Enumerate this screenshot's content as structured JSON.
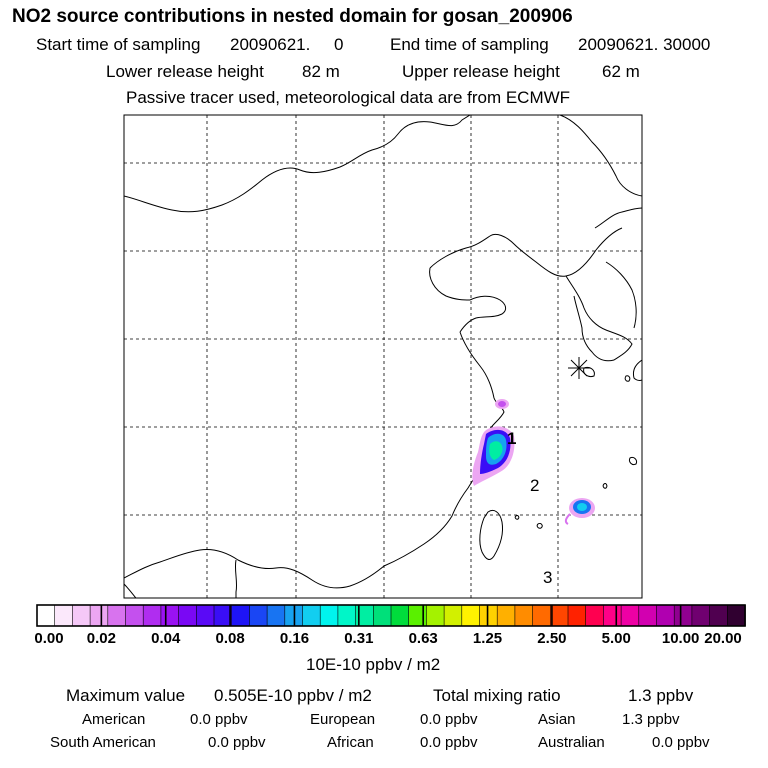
{
  "header": {
    "title": "NO2 source contributions in nested domain for gosan_200906",
    "start_label": "Start time of sampling",
    "start_value": "20090621.     0",
    "end_label": "End time of sampling",
    "end_value": "20090621. 30000",
    "lower_label": "Lower release height",
    "lower_value": "82 m",
    "upper_label": "Upper release height",
    "upper_value": "62 m",
    "note": "Passive tracer used, meteorological data are from ECMWF"
  },
  "map": {
    "receptor_marker": "asterisk-icon",
    "labels": [
      "1",
      "2",
      "3"
    ]
  },
  "colorbar": {
    "ticks": [
      "0.00",
      "0.02",
      "0.04",
      "0.08",
      "0.16",
      "0.31",
      "0.63",
      "1.25",
      "2.50",
      "5.00",
      "10.00",
      "20.00"
    ],
    "colors": [
      "#ffffff",
      "#fbe8fb",
      "#f5c8f7",
      "#eca6f2",
      "#d873ee",
      "#c450ee",
      "#b02df0",
      "#9a12f2",
      "#7a08f4",
      "#5a0af6",
      "#3a0ef6",
      "#1e14f6",
      "#1a46f4",
      "#1874f2",
      "#17a2f0",
      "#12cef0",
      "#00f4ee",
      "#00f6c8",
      "#00eea2",
      "#00e07a",
      "#00dc3c",
      "#5af000",
      "#a4f200",
      "#d2f000",
      "#fff200",
      "#ffd200",
      "#ffb000",
      "#ff8c00",
      "#ff6a00",
      "#ff4600",
      "#ff2200",
      "#ff0050",
      "#ff0088",
      "#ee00a4",
      "#d200b0",
      "#b000b0",
      "#900090",
      "#700070",
      "#500050",
      "#300030"
    ],
    "unit": "10E-10 ppbv / m2"
  },
  "summary": {
    "max_label": "Maximum value",
    "max_value": "0.505E-10 ppbv / m2",
    "total_label": "Total mixing ratio",
    "total_value": "1.3 ppbv",
    "regions": [
      {
        "name": "American",
        "value": "0.0 ppbv"
      },
      {
        "name": "European",
        "value": "0.0 ppbv"
      },
      {
        "name": "Asian",
        "value": "1.3 ppbv"
      },
      {
        "name": "South American",
        "value": "0.0 ppbv"
      },
      {
        "name": "African",
        "value": "0.0 ppbv"
      },
      {
        "name": "Australian",
        "value": "0.0 ppbv"
      }
    ]
  }
}
